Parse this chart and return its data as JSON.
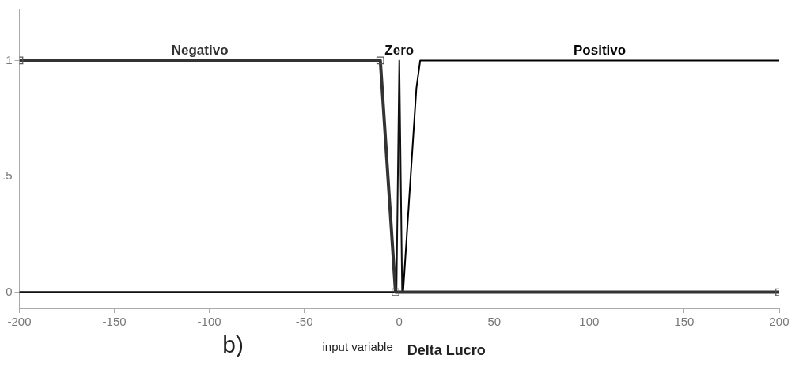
{
  "chart_data": {
    "type": "line",
    "xlabel": "input variable",
    "annotations": [
      "b)",
      "Delta Lucro"
    ],
    "xlim": [
      -200,
      200
    ],
    "xticks": [
      -200,
      -150,
      -100,
      -50,
      0,
      50,
      100,
      150,
      200
    ],
    "ylim": [
      -0.07,
      1.22
    ],
    "yticks": [
      0,
      {
        "value": 0.5,
        "label": ".5"
      },
      1
    ],
    "grid": false,
    "legend": false,
    "line_style": "solid",
    "series": [
      {
        "name": "Negativo",
        "color": "#333333",
        "marker": "square",
        "x": [
          -200,
          -10,
          -2,
          200
        ],
        "values": [
          1,
          1,
          0,
          0
        ]
      },
      {
        "name": "Zero",
        "color": "#111111",
        "marker": "none",
        "x": [
          -200,
          -1.5,
          0,
          1.5,
          200
        ],
        "values": [
          0,
          0,
          1,
          0,
          0
        ]
      },
      {
        "name": "Positivo",
        "color": "#000000",
        "marker": "none",
        "x": [
          -200,
          2,
          9,
          11,
          200
        ],
        "values": [
          0,
          0,
          0.88,
          1,
          1
        ]
      }
    ]
  }
}
